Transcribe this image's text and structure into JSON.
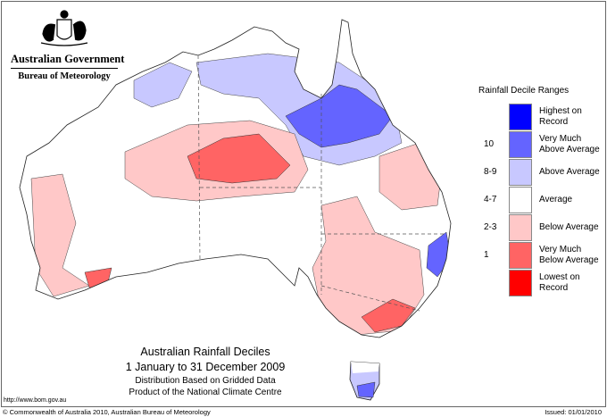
{
  "logo": {
    "line1": "Australian Government",
    "line2": "Bureau of Meteorology"
  },
  "legend": {
    "title": "Rainfall Decile Ranges",
    "items": [
      {
        "range": "",
        "label1": "Highest on",
        "label2": "Record",
        "color": "#0000ff"
      },
      {
        "range": "10",
        "label1": "Very Much",
        "label2": "Above Average",
        "color": "#6464ff"
      },
      {
        "range": "8-9",
        "label1": "Above Average",
        "label2": "",
        "color": "#c8c8ff"
      },
      {
        "range": "4-7",
        "label1": "Average",
        "label2": "",
        "color": "#ffffff"
      },
      {
        "range": "2-3",
        "label1": "Below Average",
        "label2": "",
        "color": "#ffc8c8"
      },
      {
        "range": "1",
        "label1": "Very Much",
        "label2": "Below Average",
        "color": "#ff6464"
      },
      {
        "range": "",
        "label1": "Lowest on",
        "label2": "Record",
        "color": "#ff0000"
      }
    ]
  },
  "title": {
    "main": "Australian Rainfall Deciles",
    "period": "1 January to 31 December 2009",
    "line3": "Distribution Based on Gridded Data",
    "line4": "Product of the National Climate Centre"
  },
  "url": "http://www.bom.gov.au",
  "copyright": "© Commonwealth of Australia 2010, Australian Bureau of Meteorology",
  "issued": "Issued: 01/01/2010"
}
